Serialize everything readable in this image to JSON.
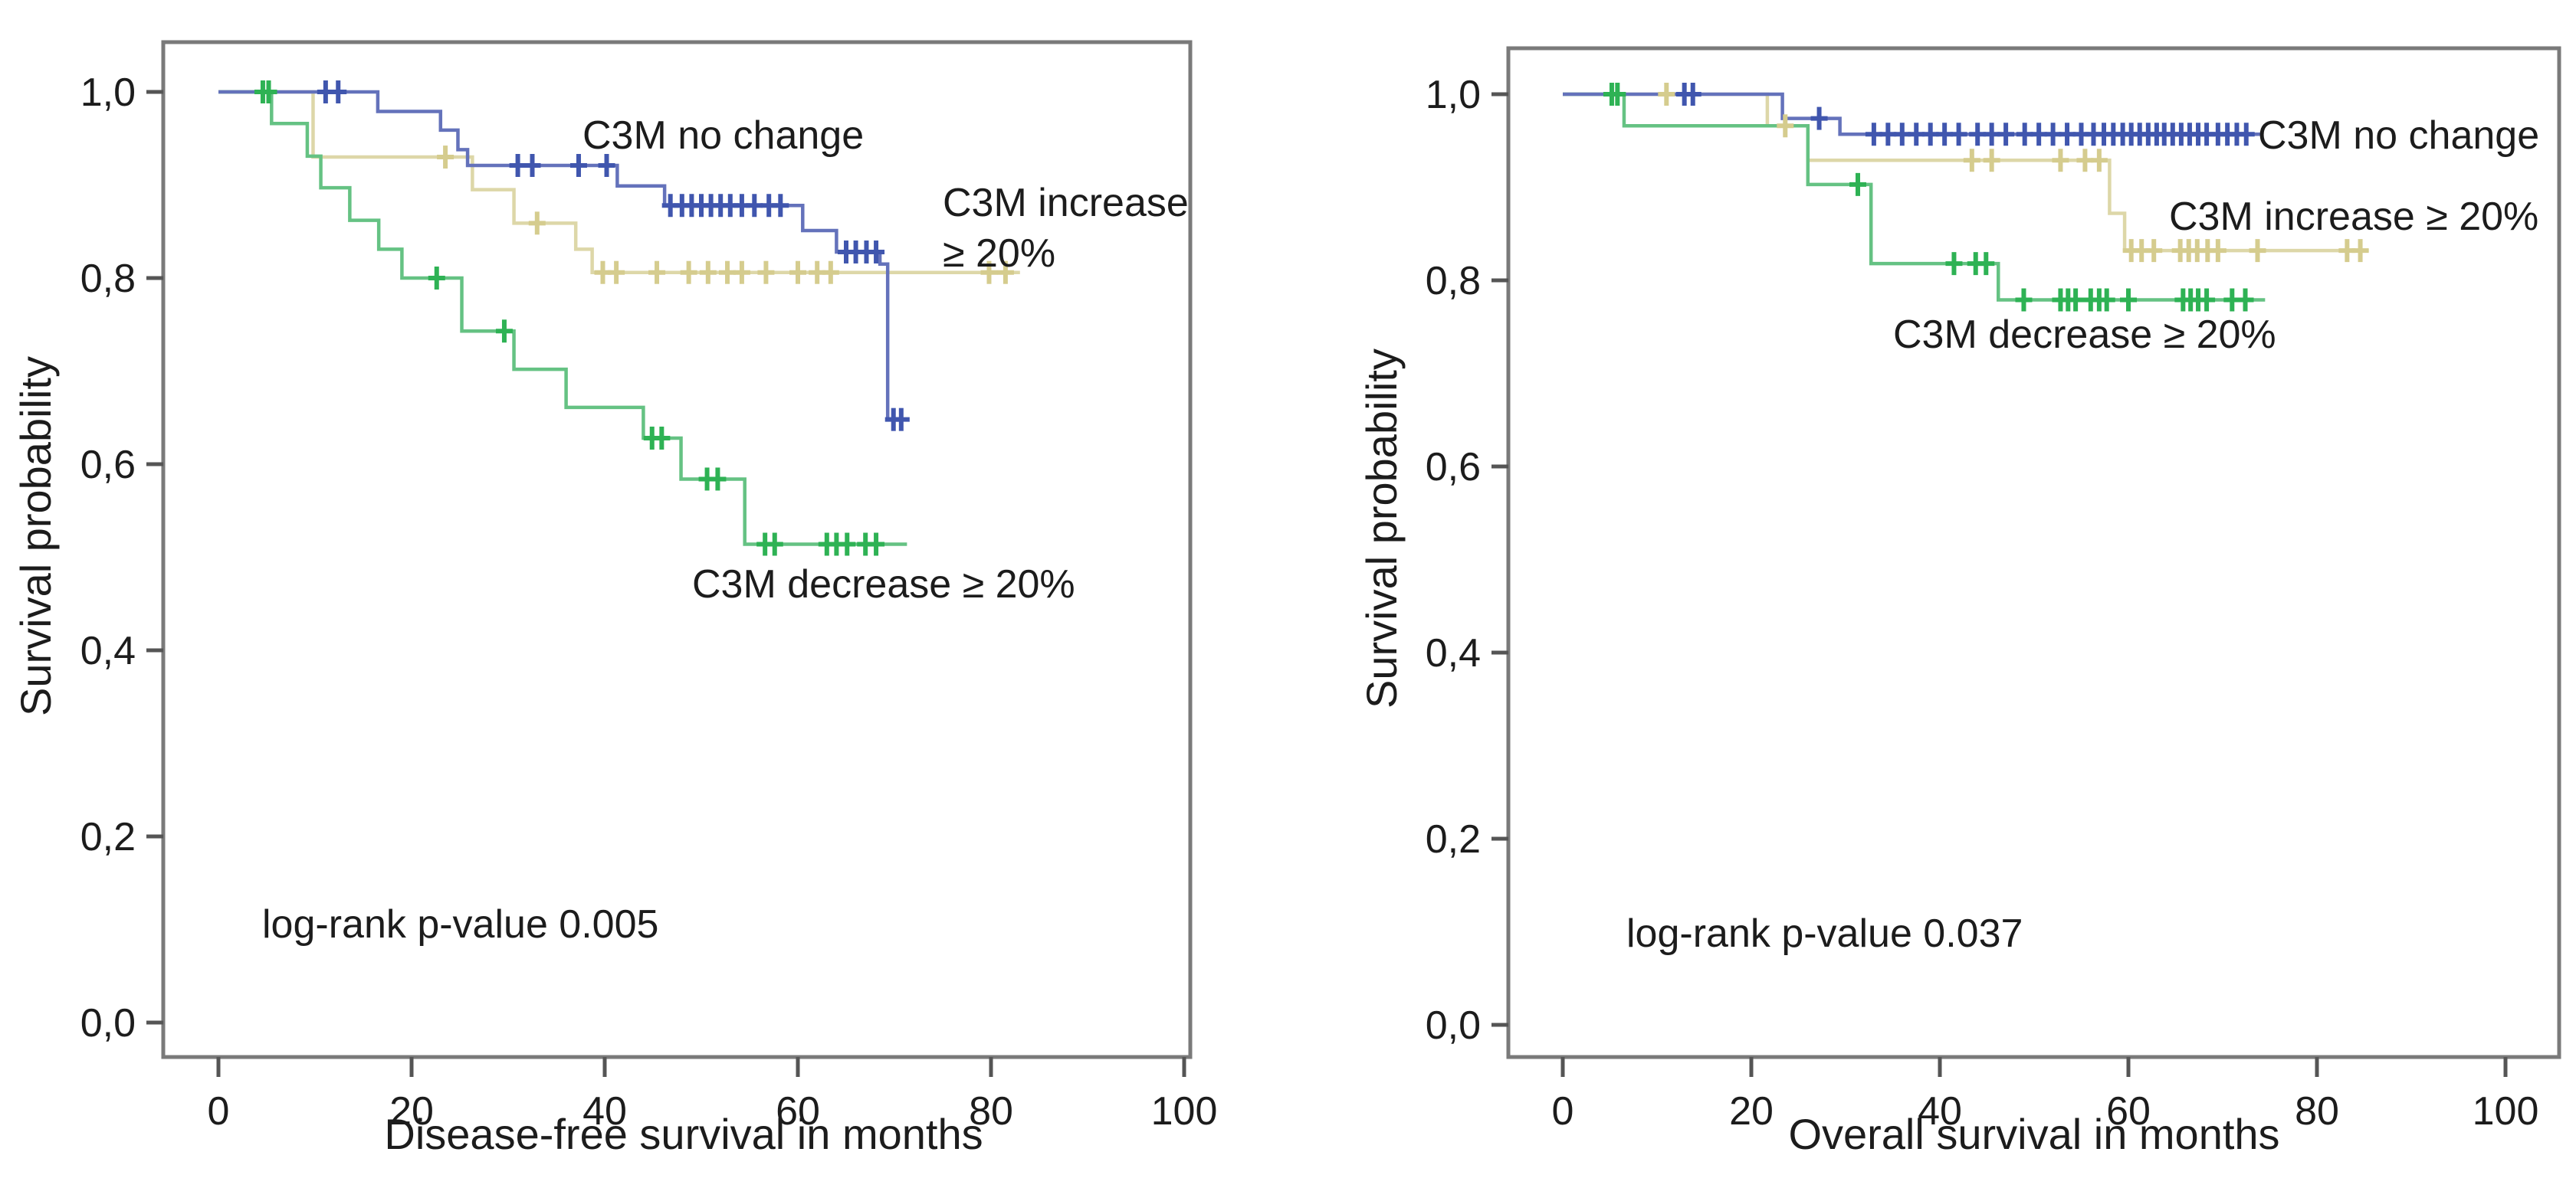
{
  "figure": {
    "left": {
      "ylabel": "Survival probability",
      "xlabel": "Disease-free survival in months",
      "pvalue": "log-rank p-value 0.005",
      "label_no_change": "C3M no change",
      "label_increase_line1": "C3M increase",
      "label_increase_line2": "≥ 20%",
      "label_decrease": "C3M decrease ≥ 20%"
    },
    "right": {
      "ylabel": "Survival probability",
      "xlabel": "Overall survival in months",
      "pvalue": "log-rank p-value 0.037",
      "label_no_change": "C3M no change",
      "label_increase": "C3M increase ≥ 20%",
      "label_decrease": "C3M decrease ≥ 20%"
    }
  },
  "colors": {
    "axis": "#7a7a7a",
    "tick": "#555555",
    "text": "#1c1c1c",
    "no_change_line": "#6472bb",
    "no_change_censor": "#4056ae",
    "increase_line": "#ddd7a8",
    "increase_censor": "#d5cc8e",
    "decrease_line": "#65c283",
    "decrease_censor": "#2eb254"
  },
  "chart_data": [
    {
      "type": "line",
      "subtype": "kaplan_meier_step",
      "title": "Disease-free survival",
      "xlabel": "Disease-free survival in months",
      "ylabel": "Survival probability",
      "annotation": "log-rank p-value 0.005",
      "xlim": [
        -6,
        106
      ],
      "ylim": [
        0,
        1.05
      ],
      "grid": false,
      "legend_position": "inline-labels",
      "xticks": {
        "values": [
          0,
          20,
          40,
          60,
          80,
          100
        ],
        "labels": [
          "0",
          "20",
          "40",
          "60",
          "80",
          "100"
        ]
      },
      "yticks": {
        "values": [
          1.0,
          0.8,
          0.6,
          0.4,
          0.2,
          0.0
        ],
        "labels": [
          "1,0",
          "0,8",
          "0,6",
          "0,4",
          "0,2",
          "0,0"
        ]
      },
      "series": [
        {
          "name": "C3M increase ≥ 20%",
          "color": "#ddd7a8",
          "censor_color": "#d5cc8e",
          "start": [
            0,
            1.0
          ],
          "steps": [
            [
              9.8,
              0.93
            ],
            [
              26.3,
              0.895
            ],
            [
              30.6,
              0.859
            ],
            [
              37,
              0.831
            ],
            [
              38.7,
              0.806
            ]
          ],
          "end_month": 83,
          "censors": [
            [
              23.5,
              0.93
            ],
            [
              33,
              0.859
            ],
            [
              39.8,
              0.806
            ],
            [
              41.2,
              0.806
            ],
            [
              45.4,
              0.806
            ],
            [
              48.7,
              0.806
            ],
            [
              50.7,
              0.806
            ],
            [
              52.7,
              0.806
            ],
            [
              54.2,
              0.806
            ],
            [
              56.7,
              0.806
            ],
            [
              60,
              0.806
            ],
            [
              62,
              0.806
            ],
            [
              63.4,
              0.806
            ],
            [
              79.8,
              0.806
            ],
            [
              81.5,
              0.806
            ]
          ]
        },
        {
          "name": "C3M decrease ≥ 20%",
          "color": "#65c283",
          "censor_color": "#2eb254",
          "start": [
            0,
            1.0
          ],
          "steps": [
            [
              5.5,
              0.966
            ],
            [
              9.2,
              0.931
            ],
            [
              10.6,
              0.897
            ],
            [
              13.6,
              0.862
            ],
            [
              16.6,
              0.831
            ],
            [
              19,
              0.8
            ],
            [
              25.2,
              0.743
            ],
            [
              30.6,
              0.702
            ],
            [
              36,
              0.661
            ],
            [
              44,
              0.628
            ],
            [
              47.9,
              0.584
            ],
            [
              54.5,
              0.514
            ]
          ],
          "end_month": 71.3,
          "censors": [
            [
              4.6,
              1
            ],
            [
              5.2,
              1
            ],
            [
              22.6,
              0.8
            ],
            [
              29.6,
              0.743
            ],
            [
              44.9,
              0.628
            ],
            [
              45.9,
              0.628
            ],
            [
              50.6,
              0.584
            ],
            [
              51.7,
              0.584
            ],
            [
              56.6,
              0.514
            ],
            [
              57.6,
              0.514
            ],
            [
              63,
              0.514
            ],
            [
              64,
              0.514
            ],
            [
              65.1,
              0.514
            ],
            [
              67,
              0.514
            ],
            [
              68.1,
              0.514
            ]
          ]
        },
        {
          "name": "C3M no change",
          "color": "#6472bb",
          "censor_color": "#4056ae",
          "start": [
            0,
            1.0
          ],
          "steps": [
            [
              16.5,
              0.979
            ],
            [
              23,
              0.959
            ],
            [
              24.8,
              0.938
            ],
            [
              25.8,
              0.921
            ],
            [
              41.3,
              0.899
            ],
            [
              46.2,
              0.878
            ],
            [
              60.5,
              0.851
            ],
            [
              64,
              0.828
            ],
            [
              68.5,
              0.815
            ],
            [
              69.3,
              0.648
            ]
          ],
          "end_month": 71.5,
          "censors": [
            [
              11.1,
              1
            ],
            [
              12.4,
              1
            ],
            [
              31,
              0.921
            ],
            [
              32.5,
              0.921
            ],
            [
              37.3,
              0.921
            ],
            [
              40.2,
              0.921
            ],
            [
              46.8,
              0.878
            ],
            [
              48,
              0.878
            ],
            [
              49,
              0.878
            ],
            [
              50,
              0.878
            ],
            [
              51,
              0.878
            ],
            [
              52,
              0.878
            ],
            [
              53,
              0.878
            ],
            [
              54.2,
              0.878
            ],
            [
              55.5,
              0.878
            ],
            [
              57,
              0.878
            ],
            [
              58.2,
              0.878
            ],
            [
              65,
              0.828
            ],
            [
              66,
              0.828
            ],
            [
              67.1,
              0.828
            ],
            [
              68.1,
              0.828
            ],
            [
              69.9,
              0.648
            ],
            [
              70.7,
              0.648
            ]
          ]
        }
      ]
    },
    {
      "type": "line",
      "subtype": "kaplan_meier_step",
      "title": "Overall survival",
      "xlabel": "Overall survival in months",
      "ylabel": "Survival probability",
      "annotation": "log-rank p-value 0.037",
      "xlim": [
        -6,
        106
      ],
      "ylim": [
        0,
        1.05
      ],
      "grid": false,
      "legend_position": "inline-labels",
      "xticks": {
        "values": [
          0,
          20,
          40,
          60,
          80,
          100
        ],
        "labels": [
          "0",
          "20",
          "40",
          "60",
          "80",
          "100"
        ]
      },
      "yticks": {
        "values": [
          1.0,
          0.8,
          0.6,
          0.4,
          0.2,
          0.0
        ],
        "labels": [
          "1,0",
          "0,8",
          "0,6",
          "0,4",
          "0,2",
          "0,0"
        ]
      },
      "series": [
        {
          "name": "C3M increase ≥ 20%",
          "color": "#ddd7a8",
          "censor_color": "#d5cc8e",
          "start": [
            0,
            1.0
          ],
          "steps": [
            [
              21.7,
              0.966
            ],
            [
              26,
              0.929
            ],
            [
              58,
              0.872
            ],
            [
              59.6,
              0.832
            ]
          ],
          "end_month": 85.5,
          "censors": [
            [
              11,
              1
            ],
            [
              23.6,
              0.966
            ],
            [
              43.4,
              0.929
            ],
            [
              45.5,
              0.929
            ],
            [
              52.8,
              0.929
            ],
            [
              55.4,
              0.929
            ],
            [
              56.9,
              0.929
            ],
            [
              60.3,
              0.832
            ],
            [
              61.4,
              0.832
            ],
            [
              62.7,
              0.832
            ],
            [
              65.5,
              0.832
            ],
            [
              66.4,
              0.832
            ],
            [
              67.3,
              0.832
            ],
            [
              68.4,
              0.832
            ],
            [
              69.5,
              0.832
            ],
            [
              73.7,
              0.832
            ],
            [
              83.2,
              0.832
            ],
            [
              84.6,
              0.832
            ]
          ]
        },
        {
          "name": "C3M decrease ≥ 20%",
          "color": "#65c283",
          "censor_color": "#2eb254",
          "start": [
            0,
            1.0
          ],
          "steps": [
            [
              6.5,
              0.966
            ],
            [
              26,
              0.903
            ],
            [
              32.7,
              0.818
            ],
            [
              46.2,
              0.779
            ]
          ],
          "end_month": 74.5,
          "censors": [
            [
              5.2,
              1
            ],
            [
              5.8,
              1
            ],
            [
              31.3,
              0.903
            ],
            [
              41.5,
              0.818
            ],
            [
              43.8,
              0.818
            ],
            [
              44.9,
              0.818
            ],
            [
              48.9,
              0.779
            ],
            [
              52.8,
              0.779
            ],
            [
              53.6,
              0.779
            ],
            [
              54.4,
              0.779
            ],
            [
              56,
              0.779
            ],
            [
              56.9,
              0.779
            ],
            [
              57.7,
              0.779
            ],
            [
              60,
              0.779
            ],
            [
              65.8,
              0.779
            ],
            [
              66.6,
              0.779
            ],
            [
              67.4,
              0.779
            ],
            [
              68.3,
              0.779
            ],
            [
              71,
              0.779
            ],
            [
              72.4,
              0.779
            ]
          ]
        },
        {
          "name": "C3M no change",
          "color": "#6472bb",
          "censor_color": "#4056ae",
          "start": [
            0,
            1.0
          ],
          "steps": [
            [
              23.3,
              0.974
            ],
            [
              29.4,
              0.957
            ]
          ],
          "end_month": 74,
          "censors": [
            [
              12.9,
              1
            ],
            [
              13.8,
              1
            ],
            [
              27.2,
              0.974
            ],
            [
              33,
              0.957
            ],
            [
              34.5,
              0.957
            ],
            [
              36,
              0.957
            ],
            [
              37.5,
              0.957
            ],
            [
              39,
              0.957
            ],
            [
              40.5,
              0.957
            ],
            [
              42,
              0.957
            ],
            [
              44,
              0.957
            ],
            [
              45.5,
              0.957
            ],
            [
              47,
              0.957
            ],
            [
              49,
              0.957
            ],
            [
              50.5,
              0.957
            ],
            [
              52,
              0.957
            ],
            [
              53.5,
              0.957
            ],
            [
              55,
              0.957
            ],
            [
              56.3,
              0.957
            ],
            [
              57.4,
              0.957
            ],
            [
              58.4,
              0.957
            ],
            [
              59.4,
              0.957
            ],
            [
              60.3,
              0.957
            ],
            [
              61.2,
              0.957
            ],
            [
              62.1,
              0.957
            ],
            [
              63,
              0.957
            ],
            [
              63.8,
              0.957
            ],
            [
              64.7,
              0.957
            ],
            [
              65.6,
              0.957
            ],
            [
              66.5,
              0.957
            ],
            [
              67.4,
              0.957
            ],
            [
              68.3,
              0.957
            ],
            [
              69.5,
              0.957
            ],
            [
              70.5,
              0.957
            ],
            [
              71.5,
              0.957
            ],
            [
              72.5,
              0.957
            ]
          ]
        }
      ]
    }
  ]
}
